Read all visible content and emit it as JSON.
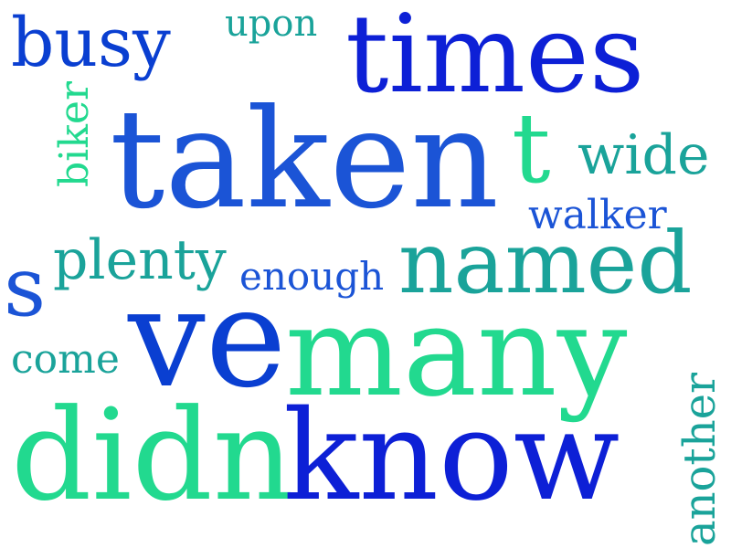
{
  "words": {
    "busy": "busy",
    "upon": "upon",
    "times": "times",
    "biker": "biker",
    "taken": "taken",
    "t": "t",
    "wide": "wide",
    "walker": "walker",
    "plenty": "plenty",
    "enough": "enough",
    "named": "named",
    "s": "s",
    "come": "come",
    "ve": "ve",
    "many": "many",
    "didn": "didn",
    "know": "know",
    "another": "another"
  },
  "colors": {
    "royal_blue": "#0a3fd1",
    "blue": "#1b54d6",
    "teal": "#1aa39a",
    "mint": "#22d98f",
    "deep_blue": "#0d20d6"
  }
}
